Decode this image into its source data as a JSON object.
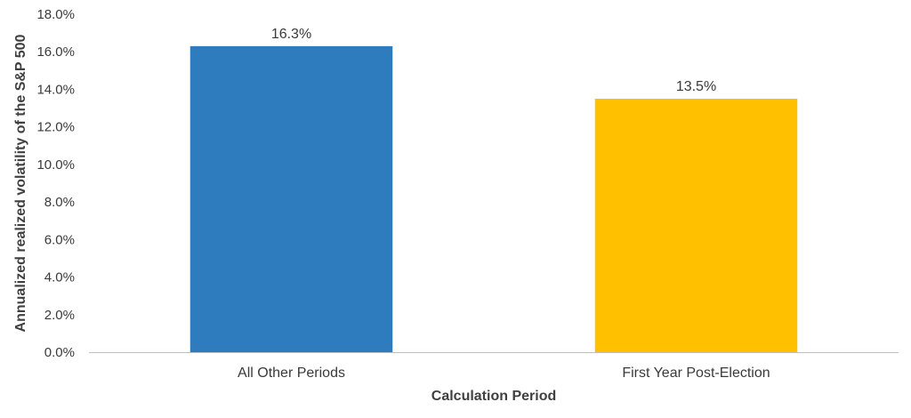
{
  "chart_data": {
    "type": "bar",
    "categories": [
      "All Other Periods",
      "First Year Post-Election"
    ],
    "values": [
      16.3,
      13.5
    ],
    "value_labels": [
      "16.3%",
      "13.5%"
    ],
    "colors": [
      "#2e7bbd",
      "#ffc000"
    ],
    "xlabel": "Calculation Period",
    "ylabel": "Annualized realized volatility of the S&P 500",
    "ylim": [
      0,
      18
    ],
    "yticks": [
      0,
      2,
      4,
      6,
      8,
      10,
      12,
      14,
      16,
      18
    ],
    "ytick_labels": [
      "0.0%",
      "2.0%",
      "4.0%",
      "6.0%",
      "8.0%",
      "10.0%",
      "12.0%",
      "14.0%",
      "16.0%",
      "18.0%"
    ],
    "grid": false,
    "legend": "none",
    "axis_color": "#bfbfbf"
  }
}
